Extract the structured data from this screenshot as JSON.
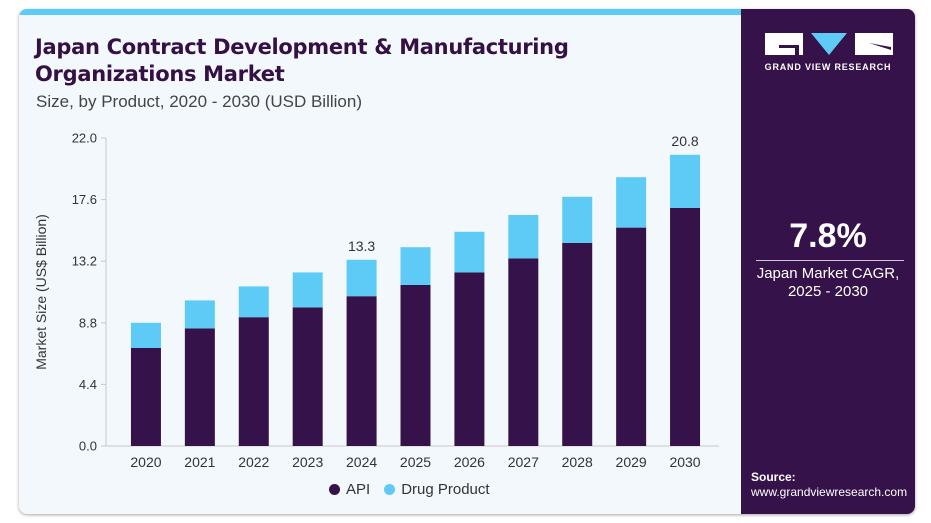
{
  "header": {
    "title_line1": "Japan Contract Development & Manufacturing",
    "title_line2": "Organizations Market",
    "subtitle": "Size, by Product, 2020 - 2030 (USD Billion)"
  },
  "brand": {
    "logo_text": "GRAND VIEW RESEARCH",
    "colors": {
      "panel": "#36124a",
      "accent": "#5ecbf6"
    }
  },
  "cagr": {
    "value": "7.8%",
    "label_line1": "Japan Market CAGR,",
    "label_line2": "2025 - 2030"
  },
  "source": {
    "label": "Source:",
    "url": "www.grandviewresearch.com"
  },
  "chart_data": {
    "type": "bar",
    "stacked": true,
    "title": "Japan Contract Development & Manufacturing Organizations Market",
    "subtitle": "Size, by Product, 2020 - 2030 (USD Billion)",
    "xlabel": "",
    "ylabel": "Market Size (US$ Billion)",
    "ylim": [
      0,
      22.0
    ],
    "yticks": [
      "0.0",
      "4.4",
      "8.8",
      "13.2",
      "17.6",
      "22.0"
    ],
    "ytick_values": [
      0,
      4.4,
      8.8,
      13.2,
      17.6,
      22.0
    ],
    "grid": false,
    "categories": [
      "2020",
      "2021",
      "2022",
      "2023",
      "2024",
      "2025",
      "2026",
      "2027",
      "2028",
      "2029",
      "2030"
    ],
    "series": [
      {
        "name": "API",
        "color": "#36124a",
        "values": [
          7.0,
          8.4,
          9.2,
          9.9,
          10.7,
          11.5,
          12.4,
          13.4,
          14.5,
          15.6,
          17.0
        ]
      },
      {
        "name": "Drug Product",
        "color": "#5ecbf6",
        "values": [
          1.8,
          2.0,
          2.2,
          2.5,
          2.6,
          2.7,
          2.9,
          3.1,
          3.3,
          3.6,
          3.8
        ]
      }
    ],
    "annotations": [
      {
        "category": "2024",
        "text": "13.3"
      },
      {
        "category": "2030",
        "text": "20.8"
      }
    ],
    "legend": {
      "position": "bottom-center",
      "entries": [
        "API",
        "Drug Product"
      ]
    }
  }
}
